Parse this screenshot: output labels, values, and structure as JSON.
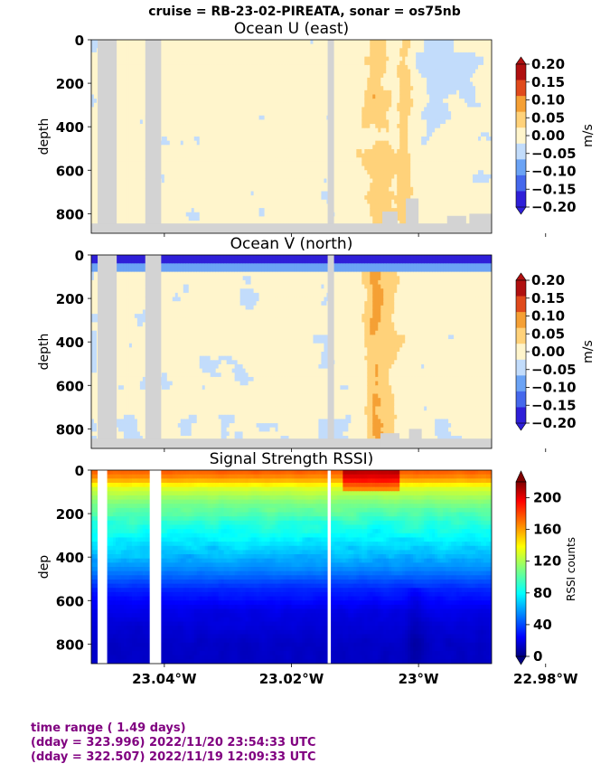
{
  "suptitle": "cruise = RB-23-02-PIREATA,  sonar = os75nb",
  "footer": {
    "line1": "time range ( 1.49 days)",
    "line2": "(dday = 323.996) 2022/11/20 23:54:33 UTC",
    "line3": "(dday = 322.507) 2022/11/19 12:09:33 UTC"
  },
  "colors": {
    "nodata_gray": "#d3d3d3",
    "footer_text": "#800080"
  },
  "chart_data": [
    {
      "type": "heatmap",
      "title": "Ocean U (east)",
      "ylabel": "depth",
      "ylim": [
        890,
        0
      ],
      "yticks": [
        0,
        200,
        400,
        600,
        800
      ],
      "xlim": [
        -23.0515,
        -22.9885
      ],
      "xtick_values": [
        -23.04,
        -23.02,
        -23.0,
        -22.98
      ],
      "xtick_labels": [
        "",
        "",
        "",
        ""
      ],
      "grid": false,
      "colorbar": {
        "label": "m/s",
        "ticks": [
          "0.20",
          "0.15",
          "0.10",
          "0.05",
          "0.00",
          "−0.05",
          "−0.10",
          "−0.15",
          "−0.20"
        ],
        "levels": [
          -0.2,
          -0.15,
          -0.1,
          -0.05,
          0,
          0.05,
          0.1,
          0.15,
          0.2
        ],
        "colors": [
          "#2e1fd8",
          "#4568ec",
          "#6ba3f5",
          "#c2dcfb",
          "#fff5cc",
          "#ffd27a",
          "#f5a035",
          "#e04a1c",
          "#b01010"
        ],
        "extend": "both"
      },
      "nodata_x_bands": [
        [
          -23.0505,
          -23.0475
        ],
        [
          -23.043,
          -23.0405
        ],
        [
          -23.0143,
          -23.0133
        ]
      ],
      "notes_values": {
        "dominant_value_range": [
          -0.05,
          0.0
        ],
        "positive_band_x": [
          -23.009,
          -23.004
        ],
        "positive_band_value": 0.05
      }
    },
    {
      "type": "heatmap",
      "title": "Ocean V (north)",
      "ylabel": "depth",
      "ylim": [
        890,
        0
      ],
      "yticks": [
        0,
        200,
        400,
        600,
        800
      ],
      "xlim": [
        -23.0515,
        -22.9885
      ],
      "xtick_values": [
        -23.04,
        -23.02,
        -23.0,
        -22.98
      ],
      "xtick_labels": [
        "",
        "",
        "",
        ""
      ],
      "grid": false,
      "colorbar": {
        "label": "m/s",
        "ticks": [
          "0.20",
          "0.15",
          "0.10",
          "0.05",
          "0.00",
          "−0.05",
          "−0.10",
          "−0.15",
          "−0.20"
        ],
        "levels": [
          -0.2,
          -0.15,
          -0.1,
          -0.05,
          0,
          0.05,
          0.1,
          0.15,
          0.2
        ],
        "colors": [
          "#2e1fd8",
          "#4568ec",
          "#6ba3f5",
          "#c2dcfb",
          "#fff5cc",
          "#ffd27a",
          "#f5a035",
          "#e04a1c",
          "#b01010"
        ],
        "extend": "both"
      },
      "nodata_x_bands": [
        [
          -23.0505,
          -23.0475
        ],
        [
          -23.043,
          -23.0405
        ],
        [
          -23.0143,
          -23.0133
        ]
      ],
      "notes_values": {
        "surface_value": -0.2,
        "positive_band_x": [
          -23.008,
          -23.002
        ]
      }
    },
    {
      "type": "heatmap",
      "title": "Signal Strength RSSI)",
      "ylabel": "dep",
      "ylim": [
        890,
        0
      ],
      "yticks": [
        0,
        200,
        400,
        600,
        800
      ],
      "xlim": [
        -23.0515,
        -22.9885
      ],
      "xtick_values": [
        -23.04,
        -23.02,
        -23.0,
        -22.98
      ],
      "xtick_labels": [
        "23.04°W",
        "23.02°W",
        "23°W",
        "22.98°W"
      ],
      "grid": false,
      "colorbar": {
        "label": "RSSI counts",
        "ticks": [
          "200",
          "160",
          "120",
          "80",
          "40",
          "0"
        ],
        "range": [
          0,
          220
        ],
        "cmap": "jet",
        "extend": "both"
      },
      "gap_x_bands": [
        [
          -23.0505,
          -23.049
        ],
        [
          -23.0423,
          -23.0405
        ],
        [
          -23.0143,
          -23.0138
        ]
      ],
      "depth_profile": {
        "depths": [
          0,
          40,
          80,
          150,
          250,
          320,
          450,
          550,
          650,
          800
        ],
        "values": [
          175,
          160,
          130,
          110,
          90,
          80,
          58,
          35,
          22,
          15
        ]
      }
    }
  ]
}
